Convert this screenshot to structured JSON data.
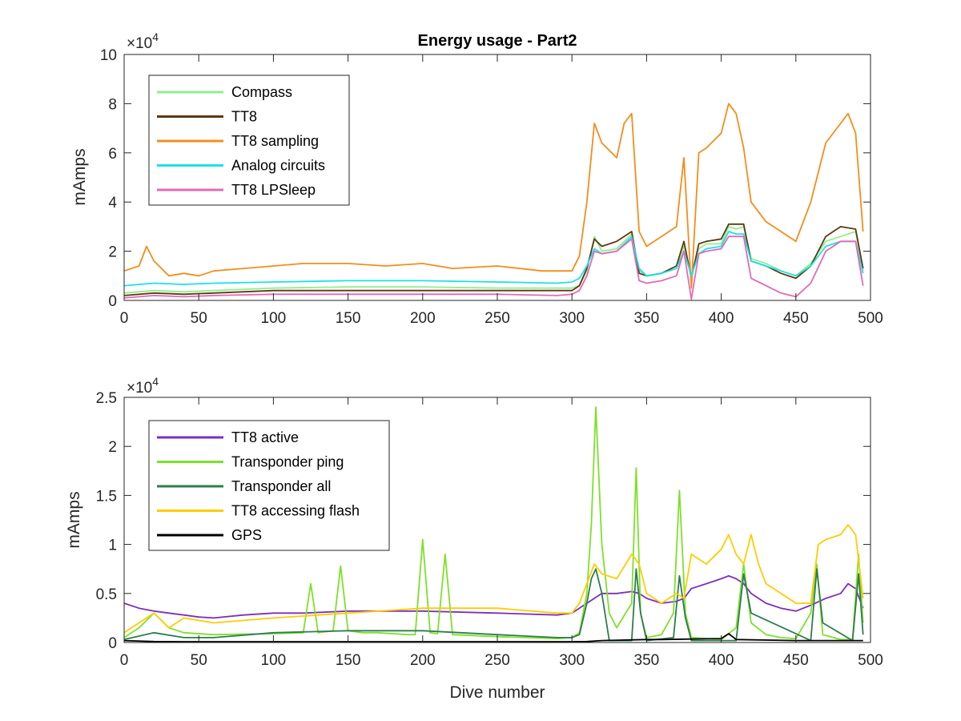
{
  "chart_data": [
    {
      "type": "line",
      "title": "Energy usage - Part2",
      "xlabel": "",
      "ylabel": "mAmps",
      "xlim": [
        0,
        500
      ],
      "ylim": [
        0,
        100000
      ],
      "xticks": [
        0,
        50,
        100,
        150,
        200,
        250,
        300,
        350,
        400,
        450,
        500
      ],
      "xtick_labels": [
        "0",
        "50",
        "100",
        "150",
        "200",
        "250",
        "300",
        "350",
        "400",
        "450",
        "500"
      ],
      "yticks": [
        0,
        20000,
        40000,
        60000,
        80000,
        100000
      ],
      "ytick_labels": [
        "0",
        "2",
        "4",
        "6",
        "8",
        "10"
      ],
      "exponent_base": "×10",
      "exponent_power": "4",
      "grid": false,
      "legend_position": "top-left",
      "series": [
        {
          "name": "Compass",
          "color": "#90EE90",
          "x": [
            0,
            20,
            40,
            60,
            100,
            150,
            200,
            250,
            290,
            300,
            305,
            310,
            315,
            320,
            330,
            340,
            345,
            350,
            360,
            370,
            375,
            380,
            385,
            390,
            400,
            405,
            410,
            415,
            420,
            430,
            440,
            450,
            460,
            470,
            480,
            490,
            495
          ],
          "values": [
            3000,
            4000,
            3500,
            4000,
            5000,
            5500,
            5500,
            5000,
            5000,
            5000,
            6000,
            12000,
            26000,
            20000,
            21000,
            27000,
            12000,
            10000,
            11000,
            14000,
            22000,
            10000,
            21000,
            23000,
            23000,
            30000,
            29000,
            30000,
            17000,
            15000,
            12000,
            10000,
            15000,
            24000,
            26000,
            28000,
            12000
          ]
        },
        {
          "name": "TT8",
          "color": "#5C3A10",
          "x": [
            0,
            20,
            40,
            60,
            100,
            150,
            200,
            250,
            290,
            300,
            305,
            310,
            315,
            320,
            330,
            340,
            345,
            350,
            360,
            370,
            375,
            380,
            385,
            390,
            400,
            405,
            410,
            415,
            420,
            430,
            440,
            450,
            460,
            470,
            480,
            490,
            495
          ],
          "values": [
            2000,
            3000,
            2500,
            3000,
            4000,
            4000,
            4000,
            4000,
            4000,
            4000,
            6000,
            13000,
            25000,
            22000,
            24000,
            28000,
            11000,
            10000,
            11000,
            14000,
            24000,
            9000,
            23000,
            24000,
            25000,
            31000,
            31000,
            31000,
            16000,
            14000,
            11000,
            9000,
            14000,
            26000,
            30000,
            29000,
            13000
          ]
        },
        {
          "name": "TT8 sampling",
          "color": "#F28E1C",
          "x": [
            0,
            10,
            15,
            20,
            30,
            40,
            50,
            60,
            80,
            100,
            120,
            150,
            175,
            200,
            220,
            250,
            280,
            300,
            305,
            310,
            315,
            320,
            330,
            335,
            340,
            345,
            350,
            360,
            370,
            375,
            380,
            385,
            390,
            400,
            405,
            410,
            415,
            420,
            430,
            440,
            450,
            460,
            470,
            480,
            485,
            490,
            495
          ],
          "values": [
            12000,
            14000,
            22000,
            16000,
            10000,
            11000,
            10000,
            12000,
            13000,
            14000,
            15000,
            15000,
            14000,
            15000,
            13000,
            14000,
            12000,
            12000,
            18000,
            40000,
            72000,
            64000,
            58000,
            72000,
            76000,
            28000,
            22000,
            26000,
            30000,
            58000,
            5000,
            60000,
            62000,
            68000,
            80000,
            76000,
            62000,
            40000,
            32000,
            28000,
            24000,
            40000,
            64000,
            72000,
            76000,
            68000,
            28000
          ]
        },
        {
          "name": "Analog circuits",
          "color": "#1EE0E6",
          "x": [
            0,
            20,
            40,
            60,
            100,
            150,
            200,
            250,
            290,
            300,
            305,
            310,
            315,
            320,
            330,
            340,
            345,
            350,
            360,
            370,
            375,
            380,
            385,
            390,
            400,
            405,
            410,
            415,
            420,
            430,
            440,
            450,
            460,
            470,
            480,
            490,
            495
          ],
          "values": [
            6000,
            7000,
            6500,
            7000,
            7500,
            8000,
            8000,
            7500,
            7000,
            7500,
            9000,
            14000,
            21000,
            19000,
            20000,
            26000,
            13000,
            10000,
            11000,
            13000,
            20000,
            10000,
            19000,
            21000,
            22000,
            28000,
            27000,
            27000,
            16000,
            14000,
            12000,
            10000,
            14000,
            22000,
            24000,
            24000,
            11000
          ]
        },
        {
          "name": "TT8 LPSleep",
          "color": "#E26AB4",
          "x": [
            0,
            20,
            40,
            60,
            100,
            150,
            200,
            250,
            290,
            300,
            305,
            310,
            315,
            320,
            330,
            340,
            345,
            350,
            360,
            370,
            375,
            380,
            385,
            390,
            400,
            405,
            410,
            415,
            420,
            430,
            440,
            450,
            460,
            470,
            480,
            490,
            495
          ],
          "values": [
            1000,
            2000,
            1500,
            2000,
            2500,
            2500,
            2500,
            2500,
            2000,
            2500,
            4000,
            10000,
            20000,
            19000,
            20000,
            25000,
            8000,
            7000,
            8000,
            10000,
            20000,
            500,
            19000,
            20000,
            21000,
            26000,
            26000,
            26000,
            9000,
            6000,
            3000,
            1500,
            7000,
            20000,
            24000,
            24000,
            6000
          ]
        }
      ]
    },
    {
      "type": "line",
      "title": "",
      "xlabel": "Dive number",
      "ylabel": "mAmps",
      "xlim": [
        0,
        500
      ],
      "ylim": [
        0,
        25000
      ],
      "xticks": [
        0,
        50,
        100,
        150,
        200,
        250,
        300,
        350,
        400,
        450,
        500
      ],
      "xtick_labels": [
        "0",
        "50",
        "100",
        "150",
        "200",
        "250",
        "300",
        "350",
        "400",
        "450",
        "500"
      ],
      "yticks": [
        0,
        5000,
        10000,
        15000,
        20000,
        25000
      ],
      "ytick_labels": [
        "0",
        "0.5",
        "1",
        "1.5",
        "2",
        "2.5"
      ],
      "exponent_base": "×10",
      "exponent_power": "4",
      "grid": false,
      "legend_position": "top-left",
      "series": [
        {
          "name": "TT8 active",
          "color": "#7B2FBE",
          "x": [
            0,
            10,
            20,
            30,
            40,
            50,
            60,
            80,
            100,
            120,
            150,
            200,
            250,
            290,
            300,
            305,
            310,
            315,
            320,
            330,
            340,
            345,
            350,
            360,
            370,
            375,
            380,
            390,
            400,
            405,
            410,
            415,
            420,
            430,
            440,
            450,
            460,
            470,
            480,
            485,
            490,
            495
          ],
          "values": [
            4000,
            3500,
            3200,
            3000,
            2800,
            2600,
            2500,
            2800,
            3000,
            3000,
            3200,
            3200,
            3000,
            2800,
            3000,
            3500,
            4000,
            4500,
            5000,
            5000,
            5200,
            5000,
            4500,
            4000,
            4200,
            4500,
            5500,
            6000,
            6500,
            6800,
            6500,
            6000,
            5000,
            4000,
            3500,
            3200,
            3800,
            4500,
            5000,
            6000,
            5500,
            3500
          ]
        },
        {
          "name": "Transponder ping",
          "color": "#7EE02A",
          "x": [
            0,
            10,
            20,
            30,
            40,
            60,
            100,
            120,
            125,
            130,
            140,
            145,
            150,
            160,
            170,
            180,
            190,
            195,
            200,
            205,
            210,
            215,
            220,
            250,
            290,
            300,
            305,
            310,
            313,
            316,
            320,
            325,
            330,
            340,
            343,
            346,
            350,
            360,
            368,
            372,
            376,
            380,
            400,
            410,
            415,
            420,
            430,
            440,
            450,
            460,
            464,
            468,
            480,
            488,
            492,
            495
          ],
          "values": [
            500,
            1500,
            3000,
            1500,
            1000,
            800,
            900,
            1000,
            6000,
            1000,
            1200,
            7800,
            1200,
            1000,
            1000,
            900,
            800,
            800,
            10500,
            1000,
            900,
            9000,
            800,
            600,
            400,
            500,
            1000,
            5000,
            12000,
            24000,
            10000,
            3000,
            1500,
            4000,
            17800,
            3000,
            500,
            800,
            3000,
            15500,
            3000,
            500,
            300,
            1500,
            8000,
            2000,
            800,
            500,
            400,
            3000,
            8000,
            800,
            300,
            300,
            9000,
            2000
          ]
        },
        {
          "name": "Transponder all",
          "color": "#2E7D4F",
          "x": [
            0,
            20,
            40,
            60,
            100,
            150,
            200,
            250,
            290,
            300,
            305,
            310,
            313,
            316,
            320,
            325,
            340,
            343,
            346,
            350,
            368,
            372,
            376,
            380,
            410,
            415,
            420,
            460,
            464,
            468,
            488,
            492,
            495
          ],
          "values": [
            300,
            1000,
            500,
            500,
            1000,
            1200,
            1200,
            800,
            500,
            500,
            800,
            4000,
            6500,
            7500,
            5000,
            200,
            200,
            7500,
            3000,
            200,
            500,
            6800,
            2500,
            200,
            200,
            7000,
            3000,
            200,
            7500,
            2000,
            200,
            7000,
            800
          ]
        },
        {
          "name": "TT8 accessing flash",
          "color": "#FFCC00",
          "x": [
            0,
            10,
            20,
            30,
            40,
            60,
            100,
            150,
            200,
            250,
            290,
            300,
            305,
            310,
            315,
            320,
            330,
            340,
            345,
            350,
            360,
            370,
            375,
            380,
            390,
            400,
            405,
            410,
            415,
            420,
            425,
            430,
            440,
            450,
            460,
            465,
            470,
            480,
            485,
            490,
            495
          ],
          "values": [
            1000,
            2000,
            3000,
            1500,
            2500,
            2000,
            2500,
            3000,
            3500,
            3500,
            3000,
            3000,
            4000,
            6000,
            8000,
            7000,
            6500,
            9000,
            8000,
            5000,
            4000,
            5000,
            4500,
            9000,
            8000,
            9500,
            11000,
            9000,
            8000,
            11000,
            8000,
            6000,
            5000,
            4000,
            4000,
            10000,
            10500,
            11000,
            12000,
            11000,
            4500
          ]
        },
        {
          "name": "GPS",
          "color": "#000000",
          "x": [
            0,
            20,
            40,
            60,
            100,
            150,
            200,
            250,
            290,
            300,
            310,
            320,
            350,
            360,
            400,
            405,
            410,
            450,
            490,
            495
          ],
          "values": [
            200,
            100,
            80,
            80,
            80,
            80,
            80,
            80,
            80,
            80,
            100,
            200,
            300,
            300,
            400,
            900,
            300,
            200,
            200,
            200
          ]
        }
      ]
    }
  ]
}
